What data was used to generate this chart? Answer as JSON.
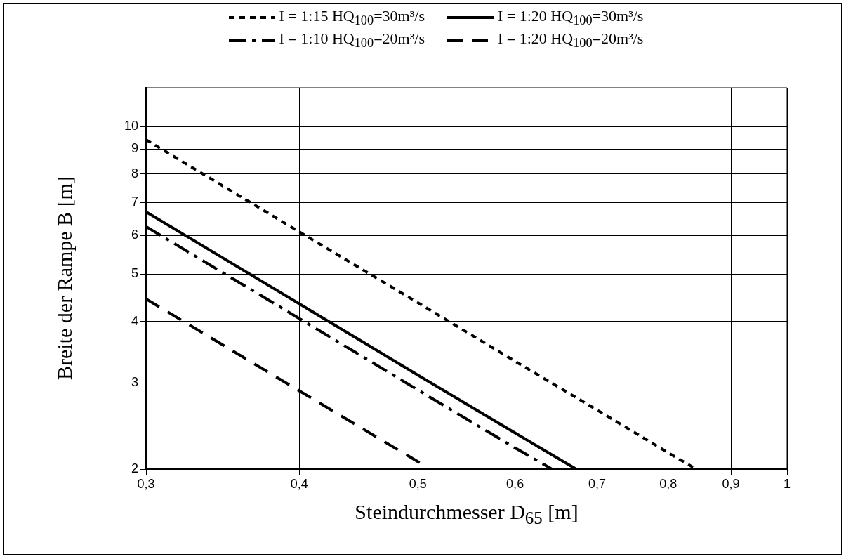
{
  "chart_data": {
    "type": "line",
    "xlabel": "Steindurchmesser D$_{65}$ [m]",
    "ylabel": "Breite der Rampe B [m]",
    "log": "xy",
    "grid": true,
    "legend": "top",
    "marker": "none",
    "xlim": [
      0.3,
      1
    ],
    "xticks": [
      {
        "value": 0.3,
        "label": "0,3"
      },
      {
        "value": 0.4,
        "label": "0,4"
      },
      {
        "value": 0.5,
        "label": "0,5"
      },
      {
        "value": 0.6,
        "label": "0,6"
      },
      {
        "value": 0.7,
        "label": "0,7"
      },
      {
        "value": 0.8,
        "label": "0,8"
      },
      {
        "value": 0.9,
        "label": "0,9"
      },
      1
    ],
    "ylim": [
      2,
      12
    ],
    "yticks": [
      2,
      3,
      4,
      5,
      6,
      7,
      8,
      9,
      10
    ],
    "series": [
      {
        "name": "I = 1:15 HQ$_{100}$=30m³/s",
        "color": "#000000",
        "line_style": "dotted",
        "x": [
          0.3,
          0.4,
          0.5,
          0.6,
          0.7,
          0.8,
          0.843
        ],
        "values": [
          9.4,
          6.1,
          4.37,
          3.32,
          2.64,
          2.16,
          2.0
        ]
      },
      {
        "name": "I = 1:20 HQ$_{100}$=30m³/s",
        "color": "#000000",
        "line_style": "solid",
        "x": [
          0.3,
          0.4,
          0.5,
          0.6,
          0.673
        ],
        "values": [
          6.7,
          4.35,
          3.11,
          2.37,
          2.0
        ]
      },
      {
        "name": "I = 1:10 HQ$_{100}$=20m³/s",
        "color": "#000000",
        "line_style": "dashdot",
        "x": [
          0.3,
          0.4,
          0.5,
          0.6,
          0.643
        ],
        "values": [
          6.25,
          4.06,
          2.9,
          2.21,
          2.0
        ]
      },
      {
        "name": "I = 1:20 HQ$_{100}$=20m³/s",
        "color": "#000000",
        "line_style": "dashed",
        "x": [
          0.3,
          0.4,
          0.5,
          0.508
        ],
        "values": [
          4.45,
          2.89,
          2.07,
          2.0
        ]
      }
    ]
  }
}
